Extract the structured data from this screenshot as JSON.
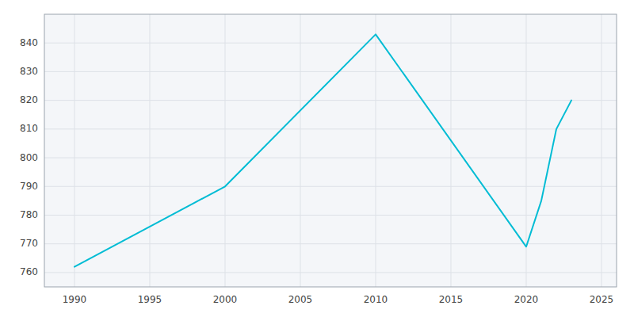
{
  "chart_data": {
    "type": "line",
    "x": [
      1990,
      2000,
      2010,
      2020,
      2021,
      2022,
      2023
    ],
    "values": [
      762,
      790,
      843,
      769,
      785,
      810,
      820
    ],
    "color": "#00BCD4",
    "xlim": [
      1988,
      2026
    ],
    "ylim": [
      755,
      850
    ],
    "xticks": [
      1990,
      1995,
      2000,
      2005,
      2010,
      2015,
      2020,
      2025
    ],
    "yticks": [
      760,
      770,
      780,
      790,
      800,
      810,
      820,
      830,
      840
    ],
    "grid": true
  }
}
